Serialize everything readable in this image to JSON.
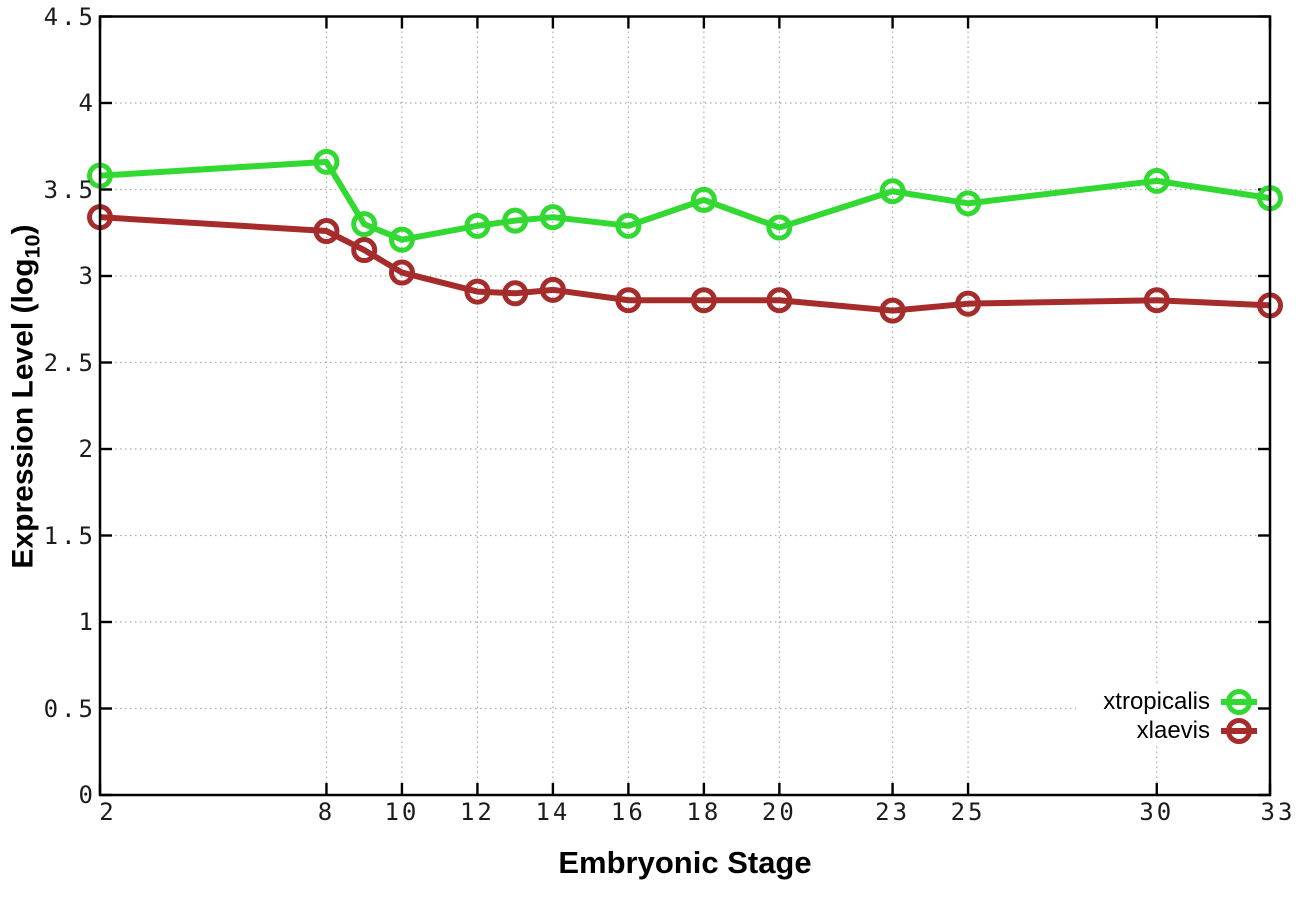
{
  "figure": {
    "background": "#ffffff",
    "border_color": "#000000",
    "grid_color": "#aaaaaa",
    "tick_color": "#000000",
    "tick_label_color": "#1c1c1c",
    "legend_background": "#ffffff"
  },
  "chart_data": {
    "type": "line",
    "title": "",
    "xlabel": "Embryonic Stage",
    "ylabel": "Expression Level (log10)",
    "ylabel_parts": {
      "main": "Expression Level (log",
      "sub": "10",
      "close": ")"
    },
    "x": [
      2,
      8,
      9,
      10,
      12,
      13,
      14,
      16,
      18,
      20,
      23,
      25,
      30,
      33
    ],
    "xlim": [
      2,
      33
    ],
    "ylim": [
      0,
      4.5
    ],
    "x_tick_values": [
      2,
      8,
      10,
      12,
      14,
      16,
      18,
      20,
      23,
      25,
      30,
      33
    ],
    "x_tick_labels": [
      "2",
      "8",
      "10",
      "12",
      "14",
      "16",
      "18",
      "20",
      "23",
      "25",
      "30",
      "33"
    ],
    "y_tick_values": [
      0,
      0.5,
      1,
      1.5,
      2,
      2.5,
      3,
      3.5,
      4,
      4.5
    ],
    "y_tick_labels": [
      "0",
      "0.5",
      "1",
      "1.5",
      "2",
      "2.5",
      "3",
      "3.5",
      "4",
      "4.5"
    ],
    "grid": true,
    "grid_style": "dotted",
    "legend_position": "bottom-right",
    "marker": "open-circle",
    "series": [
      {
        "name": "xtropicalis",
        "color": "#32d932",
        "values": [
          3.58,
          3.66,
          3.3,
          3.21,
          3.29,
          3.32,
          3.34,
          3.29,
          3.44,
          3.28,
          3.49,
          3.42,
          3.55,
          3.45
        ]
      },
      {
        "name": "xlaevis",
        "color": "#a62c2c",
        "values": [
          3.34,
          3.26,
          3.15,
          3.02,
          2.91,
          2.9,
          2.92,
          2.86,
          2.86,
          2.86,
          2.8,
          2.84,
          2.86,
          2.83
        ]
      }
    ]
  }
}
